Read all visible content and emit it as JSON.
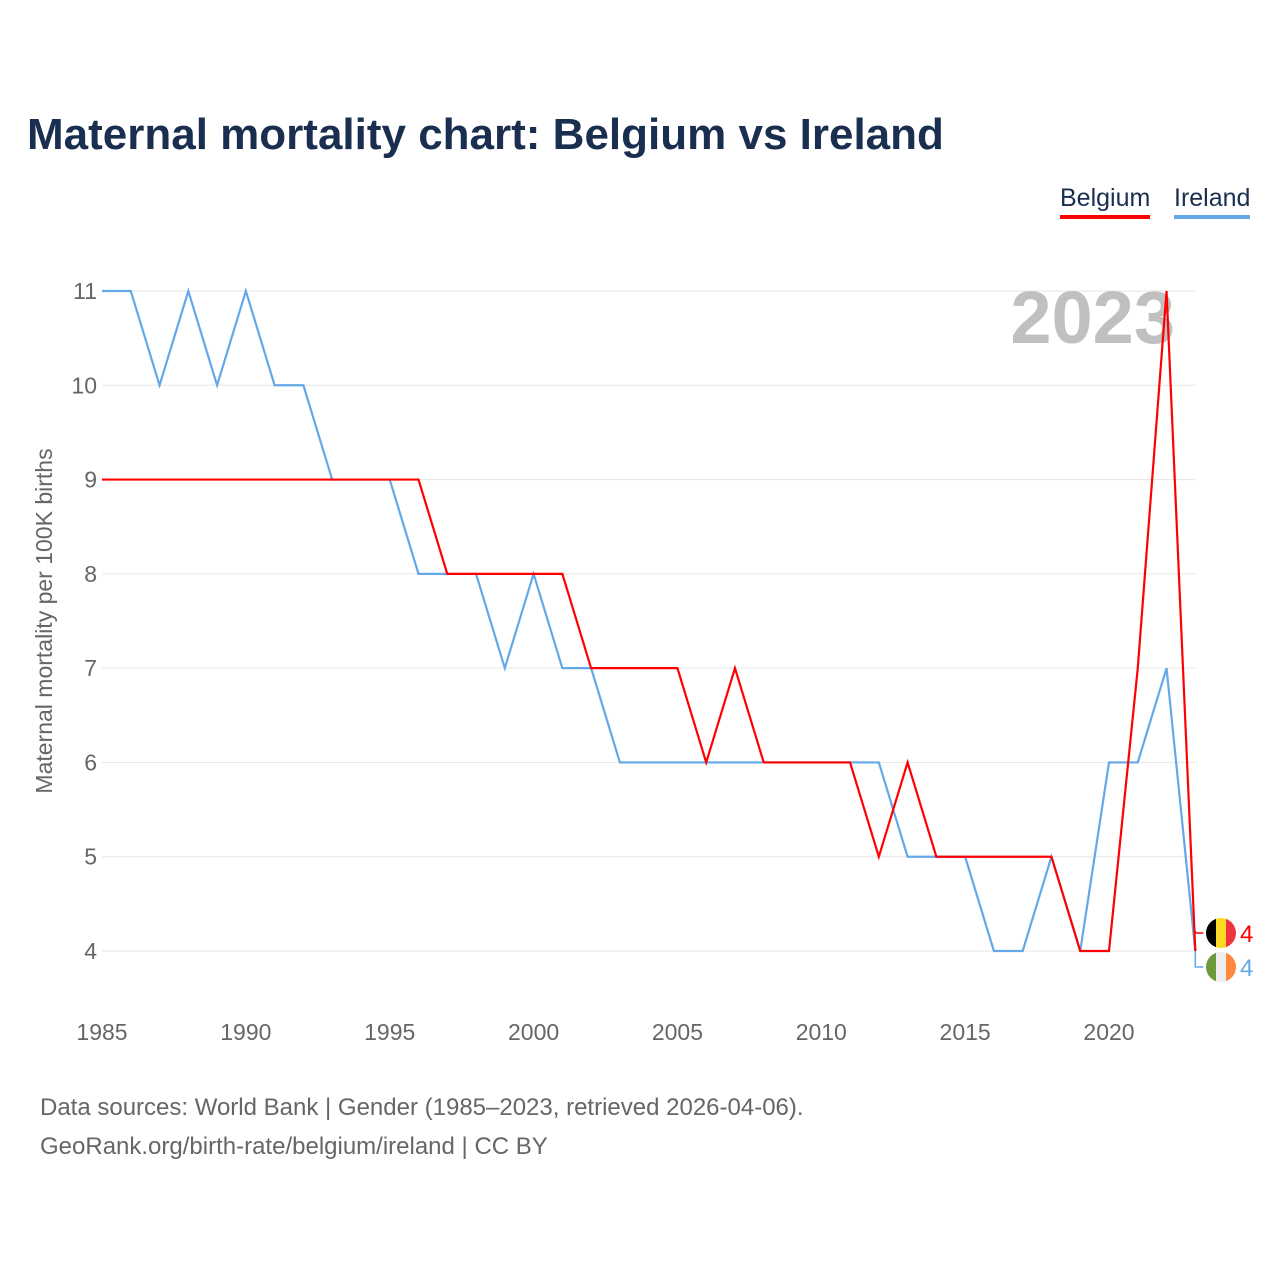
{
  "title": "Maternal mortality chart: Belgium vs Ireland",
  "footer": {
    "line1": "Data sources: World Bank | Gender (1985–2023, retrieved 2026-04-06).",
    "line2": "GeoRank.org/birth-rate/belgium/ireland | CC BY"
  },
  "chart_data": {
    "type": "line",
    "title": "Maternal mortality chart: Belgium vs Ireland",
    "ylabel": "Maternal mortality per 100K births",
    "xlabel": "",
    "year_label": "2023",
    "xlim": [
      1985,
      2023
    ],
    "ylim": [
      4,
      11
    ],
    "xticks": [
      "1985",
      "1990",
      "1995",
      "2000",
      "2005",
      "2010",
      "2015",
      "2020"
    ],
    "yticks": [
      "4",
      "5",
      "6",
      "7",
      "8",
      "9",
      "10",
      "11"
    ],
    "legend_position": "top-right",
    "x": [
      1985,
      1986,
      1987,
      1988,
      1989,
      1990,
      1991,
      1992,
      1993,
      1994,
      1995,
      1996,
      1997,
      1998,
      1999,
      2000,
      2001,
      2002,
      2003,
      2004,
      2005,
      2006,
      2007,
      2008,
      2009,
      2010,
      2011,
      2012,
      2013,
      2014,
      2015,
      2016,
      2017,
      2018,
      2019,
      2020,
      2021,
      2022,
      2023
    ],
    "series": [
      {
        "name": "Belgium",
        "color": "#ff0000",
        "end_label": "4",
        "values": [
          9,
          9,
          9,
          9,
          9,
          9,
          9,
          9,
          9,
          9,
          9,
          9,
          8,
          8,
          8,
          8,
          8,
          7,
          7,
          7,
          7,
          6,
          7,
          6,
          6,
          6,
          6,
          5,
          6,
          5,
          5,
          5,
          5,
          5,
          4,
          4,
          7,
          11,
          4
        ]
      },
      {
        "name": "Ireland",
        "color": "#64a8e8",
        "end_label": "4",
        "values": [
          11,
          11,
          10,
          11,
          10,
          11,
          10,
          10,
          9,
          9,
          9,
          8,
          8,
          8,
          7,
          8,
          7,
          7,
          6,
          6,
          6,
          6,
          6,
          6,
          6,
          6,
          6,
          6,
          5,
          5,
          5,
          4,
          4,
          5,
          4,
          6,
          6,
          7,
          4
        ]
      }
    ]
  }
}
